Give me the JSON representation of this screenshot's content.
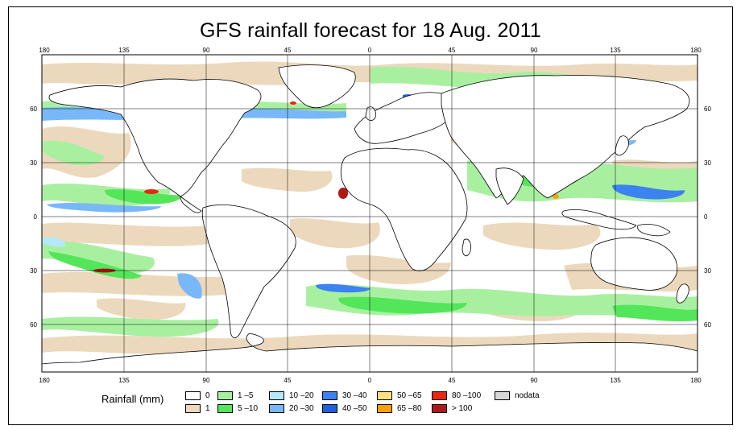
{
  "title": "GFS rainfall forecast for 18 Aug. 2011",
  "map": {
    "longitude_ticks": [
      "180",
      "135",
      "90",
      "45",
      "0",
      "45",
      "90",
      "135",
      "180"
    ],
    "latitude_ticks": [
      "60",
      "30",
      "0",
      "30",
      "60"
    ],
    "colors": {
      "ocean": "#ffffff",
      "land_outline": "#000000",
      "graticule": "#000000"
    }
  },
  "legend": {
    "title": "Rainfall (mm)",
    "items": [
      {
        "label": "0",
        "color": "#ffffff"
      },
      {
        "label": "1",
        "color": "#ecd9bd"
      },
      {
        "label": "1 –5",
        "color": "#a8f0a0"
      },
      {
        "label": "5 –10",
        "color": "#54e65a"
      },
      {
        "label": "10 –20",
        "color": "#b4e8f8"
      },
      {
        "label": "20 –30",
        "color": "#78b8f8"
      },
      {
        "label": "30 –40",
        "color": "#3c82f0"
      },
      {
        "label": "40 –50",
        "color": "#2060e0"
      },
      {
        "label": "50 –65",
        "color": "#ffe080"
      },
      {
        "label": "65 –80",
        "color": "#ffa000"
      },
      {
        "label": "80 –100",
        "color": "#e82810"
      },
      {
        "label": "> 100",
        "color": "#b01818"
      },
      {
        "label": "nodata",
        "color": "#d8d8d8"
      }
    ]
  }
}
